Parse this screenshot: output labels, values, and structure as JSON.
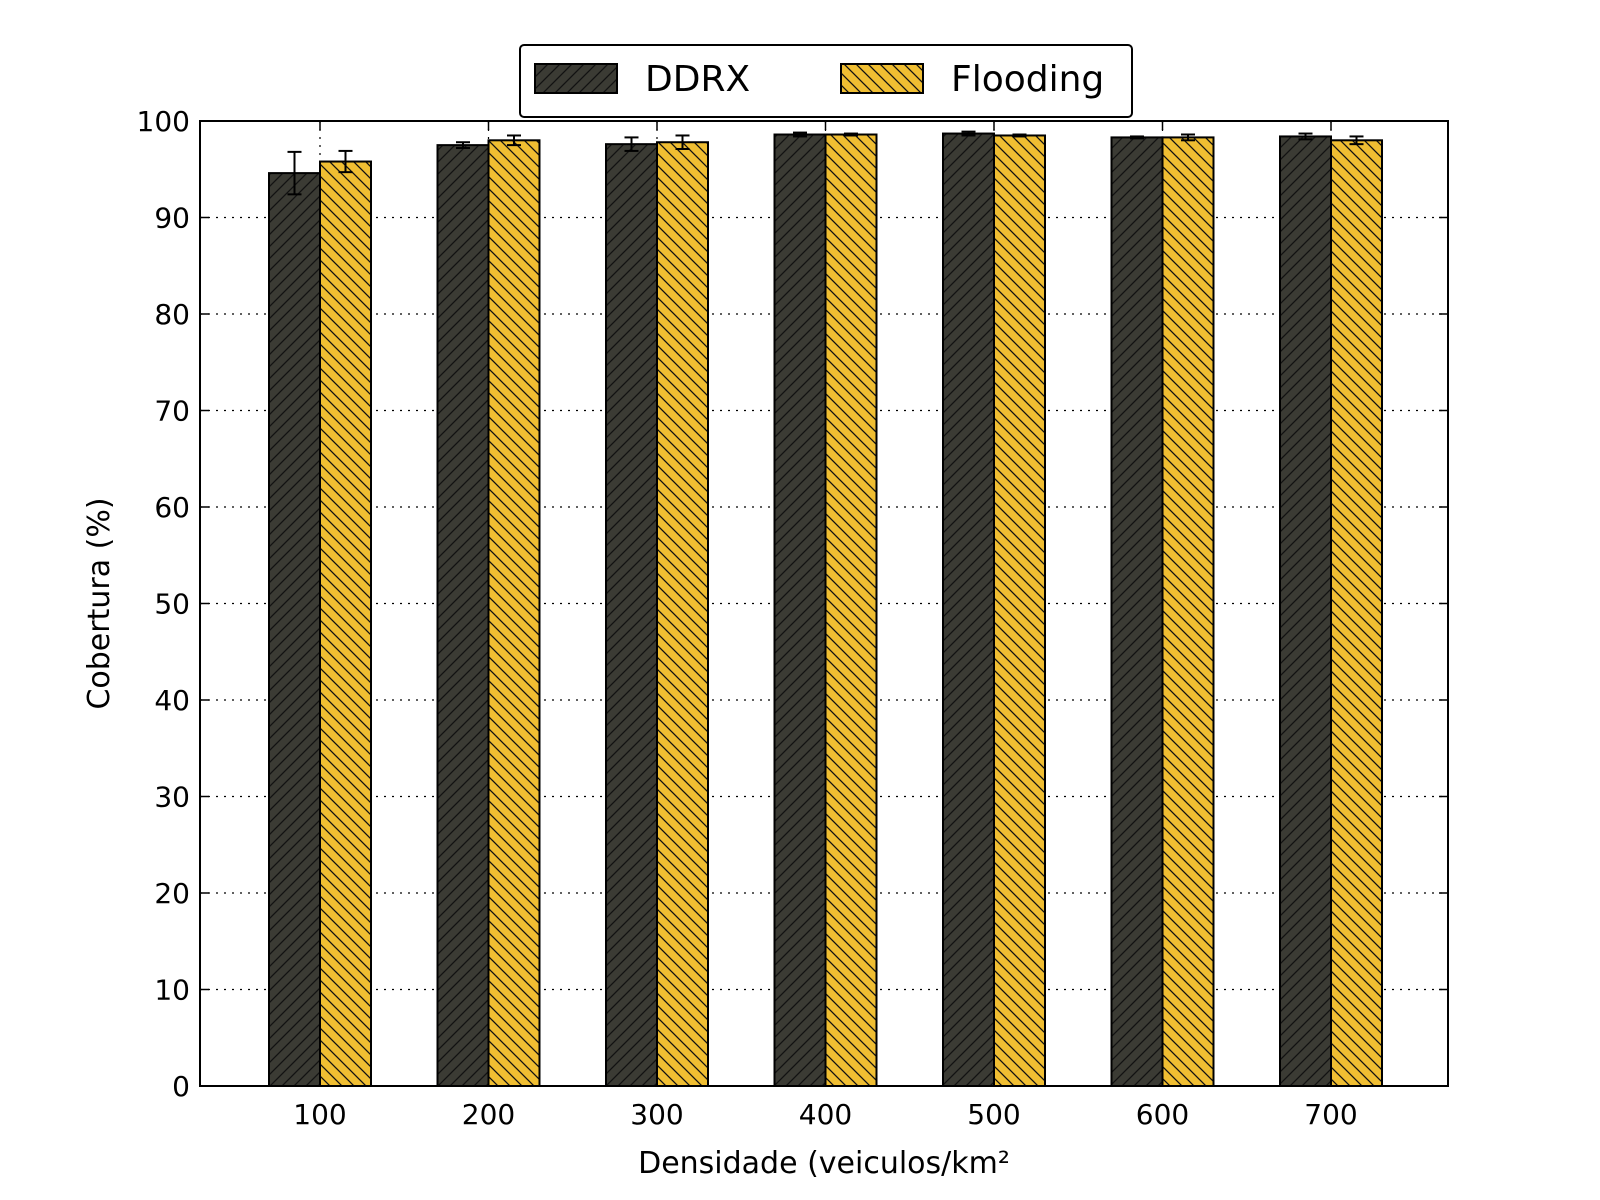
{
  "chart_data": {
    "type": "bar",
    "title": "",
    "xlabel": "Densidade (veiculos/km²",
    "ylabel": "Cobertura (%)",
    "categories": [
      "100",
      "200",
      "300",
      "400",
      "500",
      "600",
      "700"
    ],
    "ylim": [
      0,
      100
    ],
    "yticks": [
      0,
      10,
      20,
      30,
      40,
      50,
      60,
      70,
      80,
      90,
      100
    ],
    "grid": true,
    "legend_position": "top-center",
    "series": [
      {
        "name": "DDRX",
        "values": [
          94.6,
          97.5,
          97.6,
          98.6,
          98.7,
          98.3,
          98.4
        ],
        "errors": [
          2.2,
          0.3,
          0.7,
          0.2,
          0.2,
          0.1,
          0.3
        ],
        "color": "#3b3b34"
      },
      {
        "name": "Flooding",
        "values": [
          95.8,
          98.0,
          97.8,
          98.6,
          98.5,
          98.3,
          98.0
        ],
        "errors": [
          1.1,
          0.5,
          0.7,
          0.1,
          0.1,
          0.3,
          0.4
        ],
        "color": "#f0be32"
      }
    ]
  }
}
